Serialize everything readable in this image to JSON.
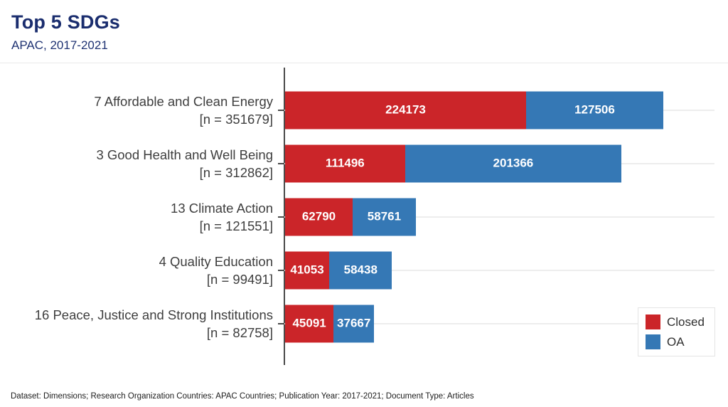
{
  "title": "Top 5 SDGs",
  "subtitle": "APAC, 2017-2021",
  "footer": "Dataset: Dimensions; Research Organization Countries: APAC Countries; Publication Year: 2017-2021; Document Type: Articles",
  "legend": {
    "position": "bottom-right",
    "items": [
      {
        "label": "Closed",
        "color": "#cb2529"
      },
      {
        "label": "OA",
        "color": "#3578b5"
      }
    ]
  },
  "colors": {
    "closed": "#cb2529",
    "oa": "#3578b5",
    "title_navy": "#1a2d6e",
    "category_label": "#3e3e3e",
    "axis": "#4a4a4a",
    "gridline": "#ededed",
    "value_label": "#ffffff"
  },
  "chart_data": {
    "type": "bar",
    "orientation": "horizontal",
    "stacked": true,
    "title": "Top 5 SDGs",
    "subtitle": "APAC, 2017-2021",
    "categories": [
      "7 Affordable and Clean Energy",
      "3 Good Health and Well Being",
      "13 Climate Action",
      "4 Quality Education",
      "16 Peace, Justice and Strong Institutions"
    ],
    "n_values": [
      351679,
      312862,
      121551,
      99491,
      82758
    ],
    "n_label_format": "[n = {n}]",
    "series": [
      {
        "name": "Closed",
        "color": "#cb2529",
        "values": [
          224173,
          111496,
          62790,
          41053,
          45091
        ]
      },
      {
        "name": "OA",
        "color": "#3578b5",
        "values": [
          127506,
          201366,
          58761,
          58438,
          37667
        ]
      }
    ],
    "xlim": [
      0,
      400000
    ],
    "x_axis_labels_visible": false,
    "grid": "faint horizontal line at each category center",
    "value_labels": "white bold, centered inside each segment",
    "legend_position": "bottom-right"
  }
}
